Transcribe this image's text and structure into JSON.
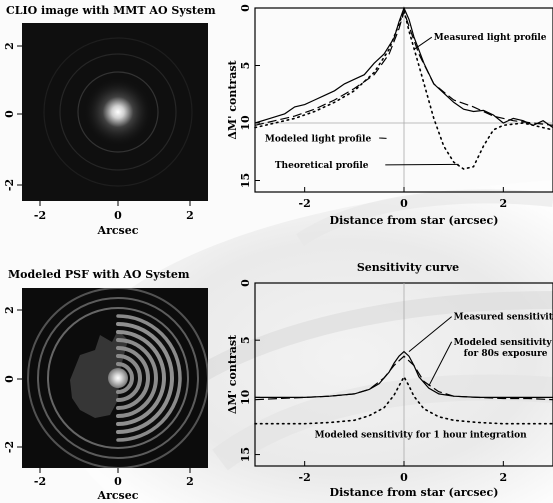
{
  "panels": {
    "clio": {
      "title": "CLIO image with MMT AO System",
      "xlabel": "Arcsec",
      "xticks": [
        "-2",
        "0",
        "2"
      ],
      "yticks": [
        "2",
        "0",
        "-2"
      ]
    },
    "psf": {
      "title": "Modeled PSF with AO System",
      "xlabel": "Arcsec",
      "xticks": [
        "-2",
        "0",
        "2"
      ],
      "yticks": [
        "2",
        "0",
        "-2"
      ]
    }
  },
  "chart_data": [
    {
      "type": "line",
      "title": "",
      "xlabel": "Distance from star (arcsec)",
      "ylabel": "ΔM' contrast",
      "xlim": [
        -3,
        3
      ],
      "ylim": [
        16,
        0
      ],
      "xticks": [
        "-2",
        "0",
        "2"
      ],
      "yticks": [
        "0",
        "5",
        "10",
        "15"
      ],
      "reference_line_y": 10,
      "series": [
        {
          "name": "Measured light profile",
          "style": "solid",
          "x": [
            -3.0,
            -2.7,
            -2.4,
            -2.2,
            -2.0,
            -1.8,
            -1.6,
            -1.4,
            -1.2,
            -1.0,
            -0.8,
            -0.6,
            -0.4,
            -0.2,
            -0.1,
            0.0,
            0.1,
            0.2,
            0.4,
            0.6,
            0.8,
            1.0,
            1.2,
            1.4,
            1.6,
            1.8,
            2.0,
            2.2,
            2.4,
            2.6,
            2.8,
            3.0
          ],
          "y": [
            10.0,
            9.6,
            9.2,
            8.6,
            8.4,
            8.0,
            7.6,
            7.2,
            6.6,
            6.2,
            5.8,
            4.8,
            4.0,
            2.6,
            1.2,
            0.0,
            1.0,
            2.5,
            4.8,
            6.6,
            7.4,
            8.2,
            8.8,
            9.0,
            8.9,
            9.3,
            10.0,
            9.6,
            9.8,
            10.2,
            9.8,
            10.4
          ]
        },
        {
          "name": "Modeled light profile",
          "style": "dashed",
          "x": [
            -3.0,
            -2.6,
            -2.2,
            -1.8,
            -1.4,
            -1.0,
            -0.6,
            -0.3,
            -0.1,
            0.0,
            0.1,
            0.3,
            0.6,
            1.0,
            1.4,
            1.8,
            2.2,
            2.6,
            3.0
          ],
          "y": [
            10.2,
            9.8,
            9.4,
            8.8,
            8.0,
            7.0,
            5.8,
            4.0,
            1.8,
            0.3,
            1.6,
            4.0,
            6.6,
            8.0,
            8.6,
            9.4,
            9.8,
            10.0,
            10.2
          ]
        },
        {
          "name": "Theoretical profile",
          "style": "dotted",
          "x": [
            -3.0,
            -2.6,
            -2.2,
            -1.8,
            -1.4,
            -1.0,
            -0.6,
            -0.3,
            -0.1,
            0.0,
            0.1,
            0.3,
            0.6,
            0.8,
            1.0,
            1.2,
            1.4,
            1.6,
            1.8,
            2.0,
            2.4,
            2.8,
            3.0
          ],
          "y": [
            10.4,
            10.0,
            9.6,
            9.0,
            8.2,
            7.2,
            5.6,
            3.6,
            1.4,
            0.2,
            2.0,
            5.0,
            9.6,
            12.0,
            13.4,
            14.0,
            13.8,
            12.0,
            10.6,
            10.2,
            10.0,
            10.4,
            10.6
          ]
        }
      ],
      "annotations": [
        {
          "text": "Measured light profile",
          "x": 0.6,
          "y": 2.8,
          "target_x": 0.2,
          "target_y": 3.6
        },
        {
          "text": "Modeled light profile",
          "x": -2.8,
          "y": 11.6,
          "target_x": -0.5,
          "target_y": 11.3
        },
        {
          "text": "Theoretical profile",
          "x": -2.6,
          "y": 13.9,
          "target_x": 1.1,
          "target_y": 13.6
        }
      ]
    },
    {
      "type": "line",
      "title": "Sensitivity curve",
      "xlabel": "Distance from star (arcsec)",
      "ylabel": "ΔM' contrast",
      "xlim": [
        -3,
        3
      ],
      "ylim": [
        16,
        0
      ],
      "xticks": [
        "-2",
        "0",
        "2"
      ],
      "yticks": [
        "0",
        "5",
        "10",
        "15"
      ],
      "series": [
        {
          "name": "Measured sensitivity",
          "style": "solid",
          "x": [
            -3.0,
            -2.5,
            -2.0,
            -1.5,
            -1.0,
            -0.7,
            -0.5,
            -0.3,
            -0.2,
            -0.1,
            0.0,
            0.1,
            0.2,
            0.3,
            0.5,
            0.7,
            1.0,
            1.5,
            2.0,
            2.5,
            3.0
          ],
          "y": [
            10.0,
            10.0,
            10.0,
            9.9,
            9.7,
            9.3,
            8.8,
            7.8,
            7.0,
            6.4,
            6.0,
            6.4,
            7.2,
            8.2,
            9.2,
            9.7,
            9.9,
            10.0,
            10.0,
            10.0,
            10.0
          ]
        },
        {
          "name": "Modeled sensitivity for 80s exposure",
          "style": "dashed",
          "x": [
            -3.0,
            -2.5,
            -2.0,
            -1.5,
            -1.0,
            -0.7,
            -0.4,
            -0.2,
            0.0,
            0.2,
            0.4,
            0.7,
            1.0,
            1.5,
            2.0,
            2.5,
            3.0
          ],
          "y": [
            10.2,
            10.1,
            10.0,
            9.9,
            9.7,
            9.3,
            8.3,
            7.2,
            6.4,
            7.2,
            8.6,
            9.5,
            9.9,
            10.0,
            10.1,
            10.1,
            10.2
          ]
        },
        {
          "name": "Modeled sensitivity for 1 hour integration",
          "style": "dotted",
          "x": [
            -3.0,
            -2.5,
            -2.0,
            -1.5,
            -1.0,
            -0.7,
            -0.4,
            -0.2,
            -0.1,
            0.0,
            0.1,
            0.2,
            0.4,
            0.7,
            1.0,
            1.5,
            2.0,
            2.5,
            3.0
          ],
          "y": [
            12.3,
            12.3,
            12.3,
            12.2,
            12.0,
            11.6,
            10.9,
            9.8,
            9.0,
            8.2,
            9.0,
            9.9,
            11.0,
            11.7,
            12.0,
            12.2,
            12.3,
            12.3,
            12.3
          ]
        }
      ],
      "annotations": [
        {
          "text": "Measured sensitivity",
          "x": 1.0,
          "y": 3.2,
          "target_x": 0.1,
          "target_y": 6.0
        },
        {
          "text": "Modeled sensitivity",
          "x": 1.0,
          "y": 5.4,
          "target_x": 0.5,
          "target_y": 9.0
        },
        {
          "text": "for 80s exposure",
          "x": 1.2,
          "y": 6.4
        },
        {
          "text": "Modeled sensitivity for 1 hour integration",
          "x": -1.8,
          "y": 13.5
        }
      ]
    }
  ]
}
